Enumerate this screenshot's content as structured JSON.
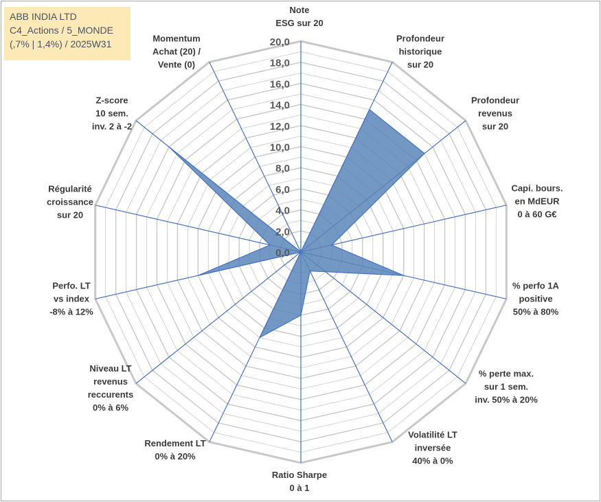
{
  "info": {
    "line1": "ABB INDIA LTD",
    "line2": "C4_Actions / 5_MONDE",
    "line3": "(,7% | 1,4%) / 2025W31"
  },
  "chart_data": {
    "type": "radar",
    "title": "",
    "rlim": [
      0,
      20
    ],
    "tick_values": [
      0,
      2,
      4,
      6,
      8,
      10,
      12,
      14,
      16,
      18,
      20
    ],
    "tick_labels": [
      "0,0",
      "2,0",
      "4,0",
      "6,0",
      "8,0",
      "10,0",
      "12,0",
      "14,0",
      "16,0",
      "18,0",
      "20,0"
    ],
    "grid": true,
    "legend": "none",
    "fill_color": "#5b86b9",
    "line_color": "#4472c4",
    "grid_color": "#c8c8c8",
    "axes": [
      {
        "label": [
          "Note",
          "ESG sur 20"
        ],
        "value": 0
      },
      {
        "label": [
          "Profondeur",
          "historique",
          "sur 20"
        ],
        "value": 15
      },
      {
        "label": [
          "Profondeur",
          "revenus",
          "sur 20"
        ],
        "value": 15
      },
      {
        "label": [
          "Capi. bours.",
          "en MdEUR",
          "0 à 60 G€"
        ],
        "value": 3
      },
      {
        "label": [
          "% perfo 1A",
          "positive",
          "50% à 80%"
        ],
        "value": 10
      },
      {
        "label": [
          "% perte max.",
          "sur 1 sem.",
          "inv. 50% à 20%"
        ],
        "value": 3
      },
      {
        "label": [
          "Volatilité LT",
          "inversée",
          "40% à 0%"
        ],
        "value": 2
      },
      {
        "label": [
          "Ratio Sharpe",
          "0 à 1"
        ],
        "value": 6
      },
      {
        "label": [
          "Rendement LT",
          "0% à 20%"
        ],
        "value": 9
      },
      {
        "label": [
          "Niveau LT",
          "revenus",
          "reccurents",
          "0% à 6%"
        ],
        "value": 0
      },
      {
        "label": [
          "Perfo. LT",
          "vs index",
          "-8% à 12%"
        ],
        "value": 10
      },
      {
        "label": [
          "Régularité",
          "croissance",
          "sur 20"
        ],
        "value": 3
      },
      {
        "label": [
          "Z-score",
          "10 sem.",
          "inv. 2 à -2"
        ],
        "value": 16
      },
      {
        "label": [
          "Momentum",
          "Achat (20) /",
          "Vente (0)"
        ],
        "value": 0
      }
    ]
  }
}
